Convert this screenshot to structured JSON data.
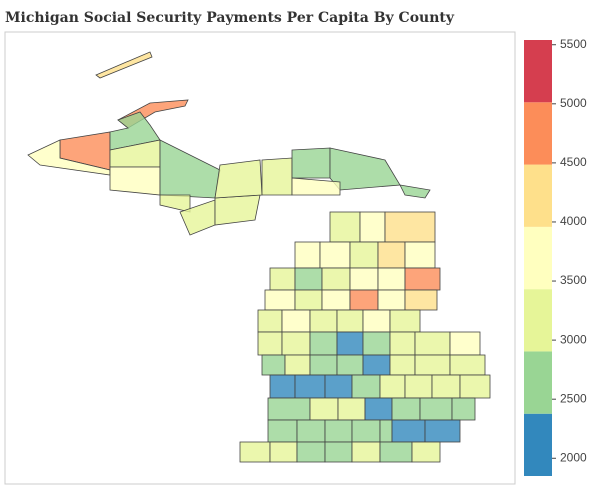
{
  "chart_data": {
    "type": "choropleth",
    "title": "Michigan Social Security Payments Per Capita By County",
    "values": [
      4400,
      4500,
      4700,
      3500,
      2700,
      3400,
      3800,
      2700,
      3200,
      3400,
      3300,
      3100,
      3300,
      2700,
      2700,
      3900,
      2600,
      3200,
      3800,
      4300,
      3500,
      3700,
      3400,
      4300,
      3500,
      3400,
      2700,
      3300,
      3800,
      3800,
      4600,
      3500,
      3400,
      3500,
      4700,
      3800,
      4300,
      3400,
      3900,
      3200,
      3100,
      3700,
      3000,
      3100,
      3400,
      2700,
      2200,
      2700,
      3300,
      3100,
      3500,
      2700,
      3100,
      2600,
      2800,
      2150,
      3300,
      3000,
      3100,
      2200,
      2100,
      2200,
      2700,
      3300,
      3400,
      3000,
      3000,
      2700,
      3300,
      3400,
      2100,
      2700,
      2600,
      2500,
      2700,
      2800,
      2700,
      2800,
      2700,
      2200,
      2050,
      3200,
      3300,
      2700,
      2800,
      3100,
      2700,
      3000
    ],
    "zlim": [
      1850,
      5540
    ],
    "colors": [
      "#3288bd",
      "#99d594",
      "#e6f598",
      "#ffffbf",
      "#fee08b",
      "#fc8d59",
      "#d53e4f"
    ],
    "zticks": [
      2000,
      2500,
      3000,
      3500,
      4000,
      4500,
      5000,
      5500
    ]
  }
}
